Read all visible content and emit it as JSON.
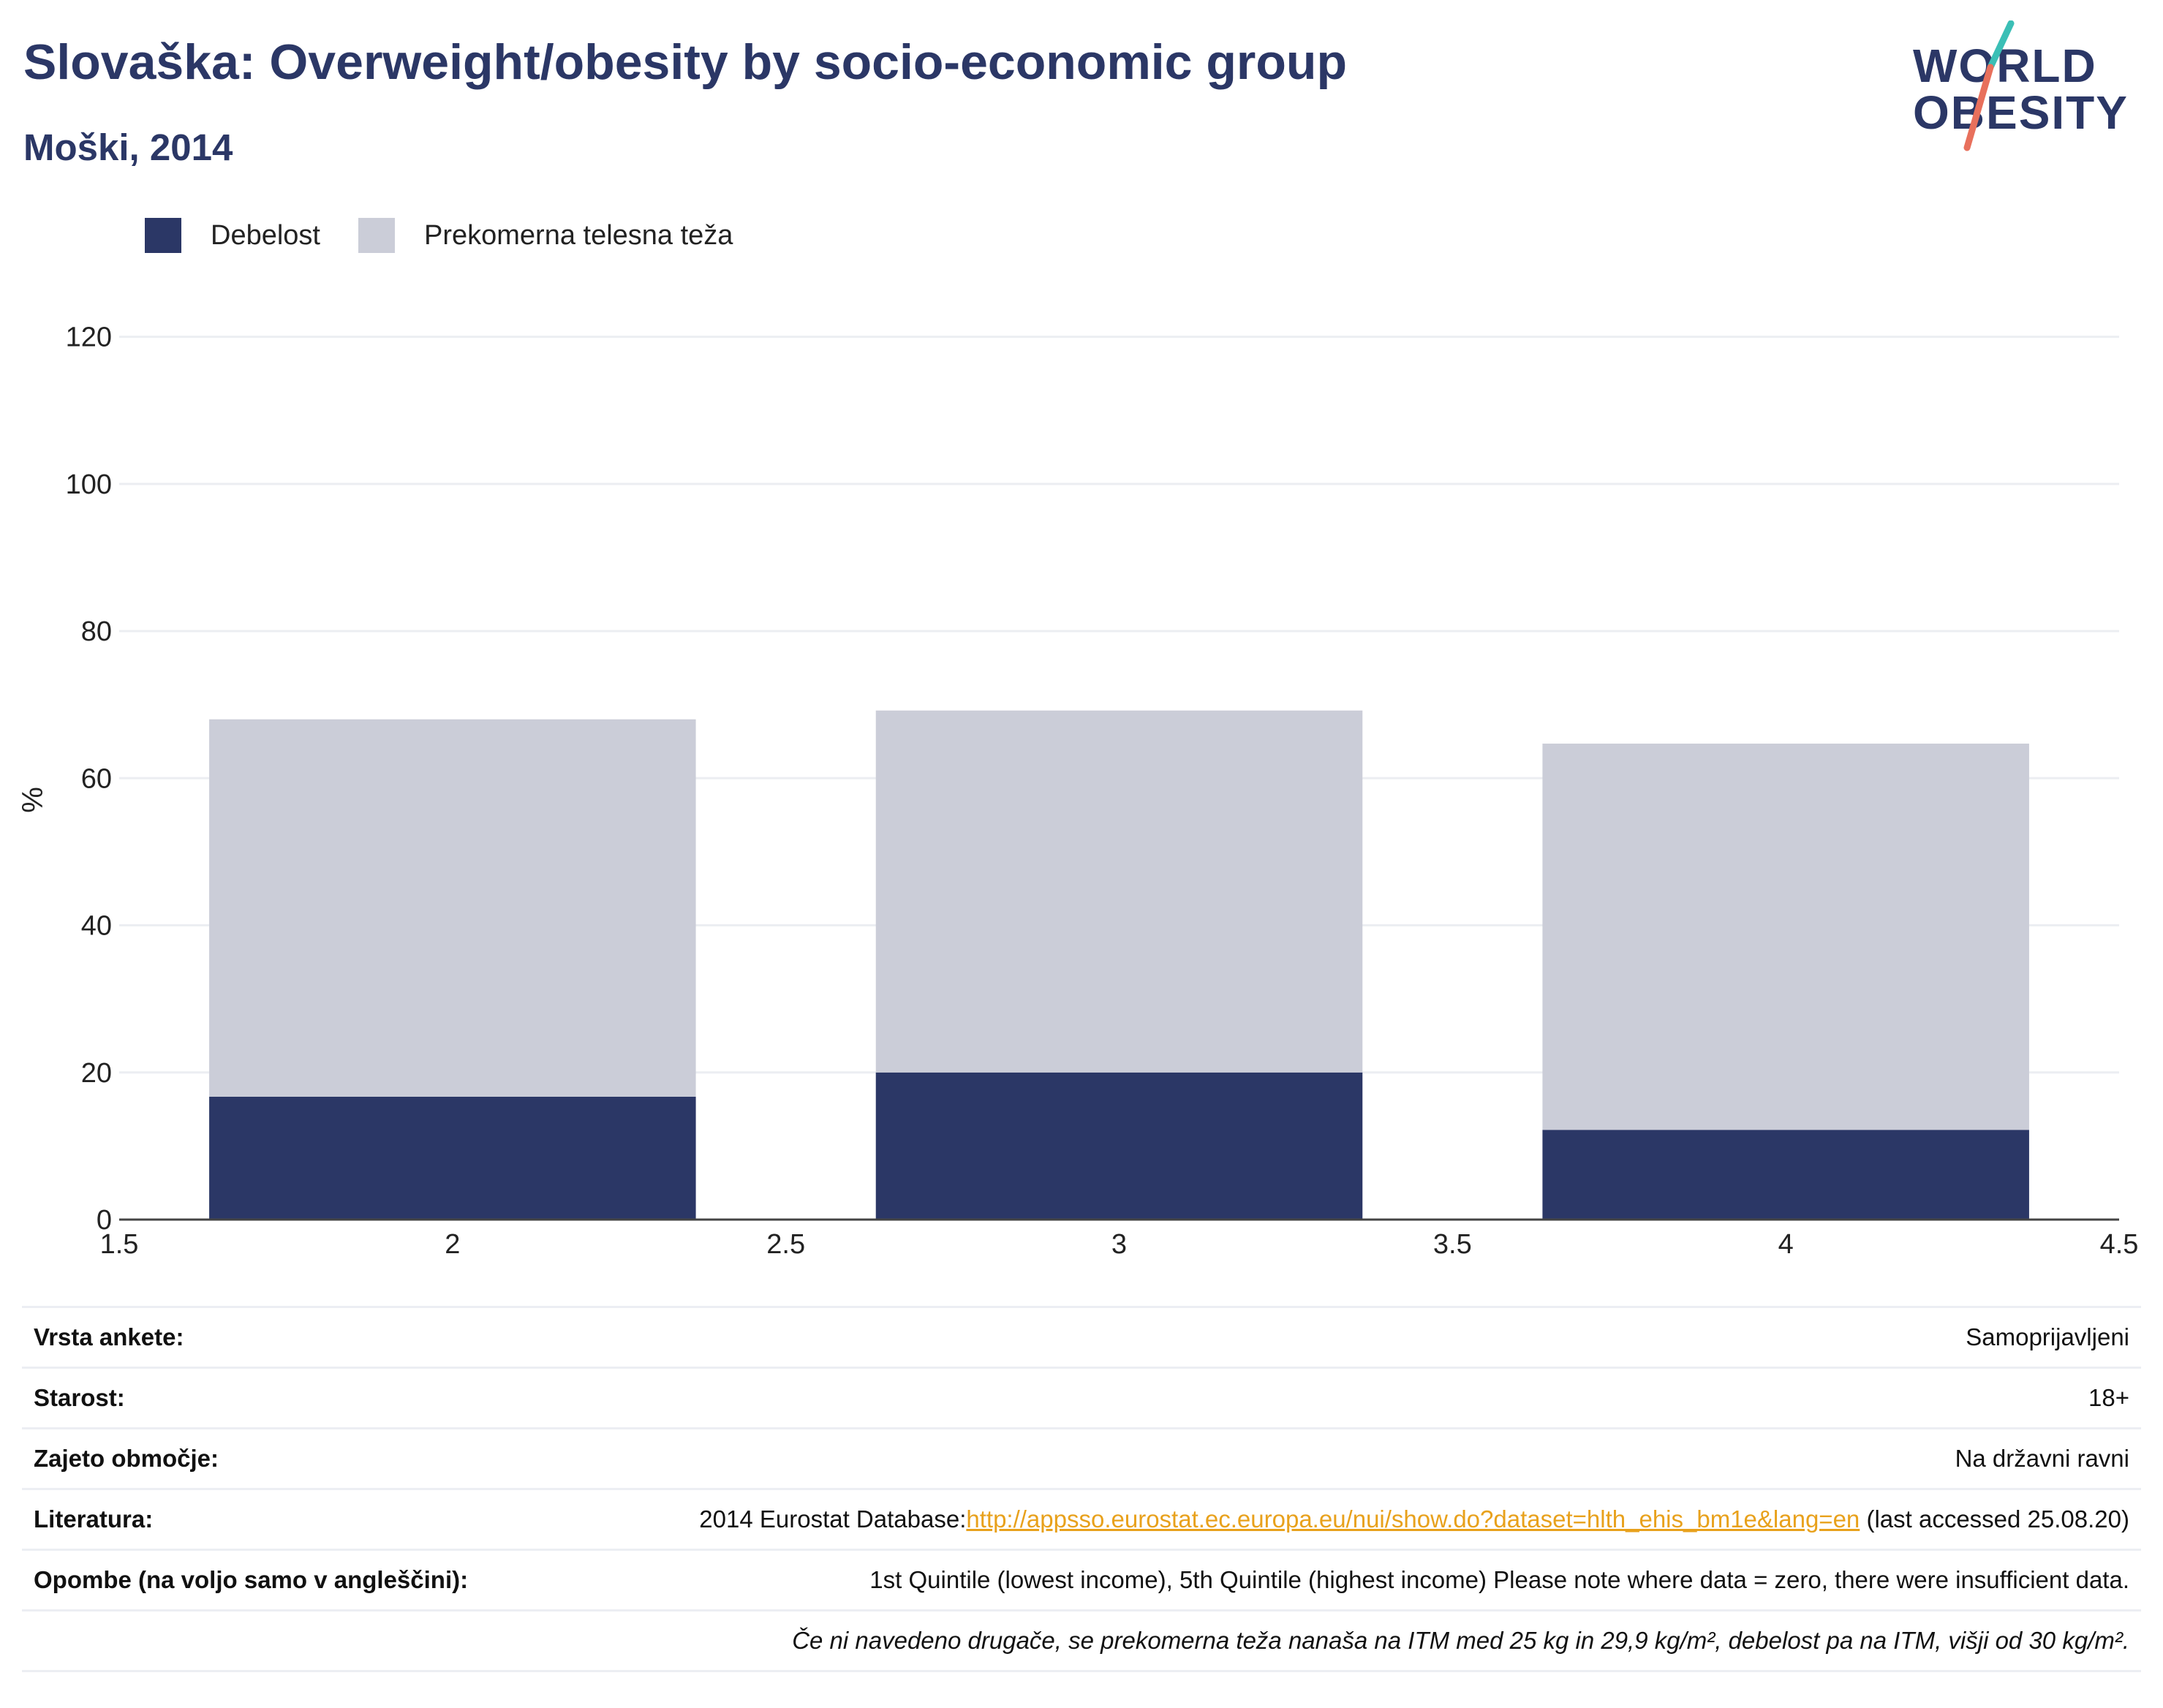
{
  "header": {
    "title": "Slovaška: Overweight/obesity by socio-economic group",
    "subtitle": "Moški, 2014"
  },
  "logo": {
    "line1": "WORLD",
    "line2": "OBESITY",
    "accent_teal": "#3bbfb6",
    "accent_coral": "#e8705c"
  },
  "colors": {
    "obesity": "#2b3766",
    "overweight": "#cbcdd8",
    "grid": "#eceef2",
    "axis": "#444444",
    "link": "#e8a11c"
  },
  "chart_data": {
    "type": "bar",
    "stacked": true,
    "x": [
      2,
      3,
      4
    ],
    "xlim": [
      1.5,
      4.5
    ],
    "xticks": [
      1.5,
      2,
      2.5,
      3,
      3.5,
      4,
      4.5
    ],
    "ylim": [
      0,
      130
    ],
    "yticks": [
      0,
      20,
      40,
      60,
      80,
      100,
      120
    ],
    "ylabel": "%",
    "xlabel": "",
    "grid": true,
    "legend_position": "top-left",
    "series": [
      {
        "name": "Debelost",
        "values": [
          16.7,
          20.0,
          12.2
        ]
      },
      {
        "name": "Prekomerna telesna teža",
        "values": [
          51.3,
          49.2,
          52.5
        ]
      }
    ]
  },
  "table": {
    "rows": [
      {
        "key": "Vrsta ankete:",
        "value": "Samoprijavljeni"
      },
      {
        "key": "Starost:",
        "value": "18+"
      },
      {
        "key": "Zajeto območje:",
        "value": "Na državni ravni"
      },
      {
        "key": "Literatura:",
        "value_prefix": "2014 Eurostat Database:",
        "link_text": "http://appsso.eurostat.ec.europa.eu/nui/show.do?dataset=hlth_ehis_bm1e&lang=en",
        "value_suffix": " (last accessed 25.08.20)"
      },
      {
        "key": "Opombe (na voljo samo v angleščini):",
        "value": "1st Quintile (lowest income), 5th Quintile (highest income) Please note where data = zero, there were insufficient data."
      },
      {
        "key": "",
        "value": "Če ni navedeno drugače, se prekomerna teža nanaša na ITM med 25 kg in 29,9 kg/m², debelost pa na ITM, višji od 30 kg/m²."
      }
    ]
  }
}
